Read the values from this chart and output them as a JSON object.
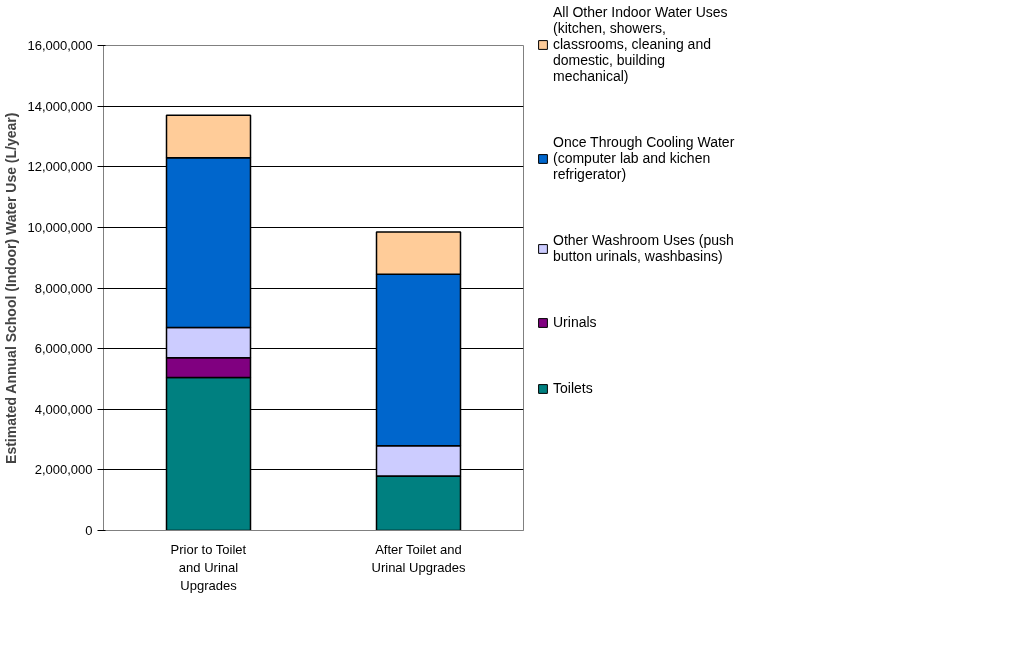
{
  "chart_data": {
    "type": "bar",
    "stacked": true,
    "ylabel": "Estimated Annual School (Indoor) Water Use (L/year)",
    "categories": [
      "Prior to Toilet and Urinal Upgrades",
      "After Toilet and Urinal Upgrades"
    ],
    "series": [
      {
        "name": "Toilets",
        "color": "#008080",
        "values": [
          5050000,
          1800000
        ]
      },
      {
        "name": "Urinals",
        "color": "#800080",
        "values": [
          650000,
          0
        ]
      },
      {
        "name": "Other Washroom Uses (push button urinals, washbasins)",
        "color": "#ccccff",
        "values": [
          1000000,
          1000000
        ]
      },
      {
        "name": "Once Through Cooling Water (computer lab and kichen refrigerator)",
        "color": "#0066cc",
        "values": [
          5600000,
          5650000
        ]
      },
      {
        "name": "All Other Indoor Water Uses (kitchen, showers, classrooms, cleaning and domestic, building mechanical)",
        "color": "#ffcc99",
        "values": [
          1400000,
          1400000
        ]
      }
    ],
    "ylim": [
      0,
      16000000
    ],
    "yticks": [
      {
        "value": 0,
        "label": "0"
      },
      {
        "value": 2000000,
        "label": "2,000,000"
      },
      {
        "value": 4000000,
        "label": "4,000,000"
      },
      {
        "value": 6000000,
        "label": "6,000,000"
      },
      {
        "value": 8000000,
        "label": "8,000,000"
      },
      {
        "value": 10000000,
        "label": "10,000,000"
      },
      {
        "value": 12000000,
        "label": "12,000,000"
      },
      {
        "value": 14000000,
        "label": "14,000,000"
      },
      {
        "value": 16000000,
        "label": "16,000,000"
      }
    ],
    "grid": "y",
    "legend": "right"
  }
}
